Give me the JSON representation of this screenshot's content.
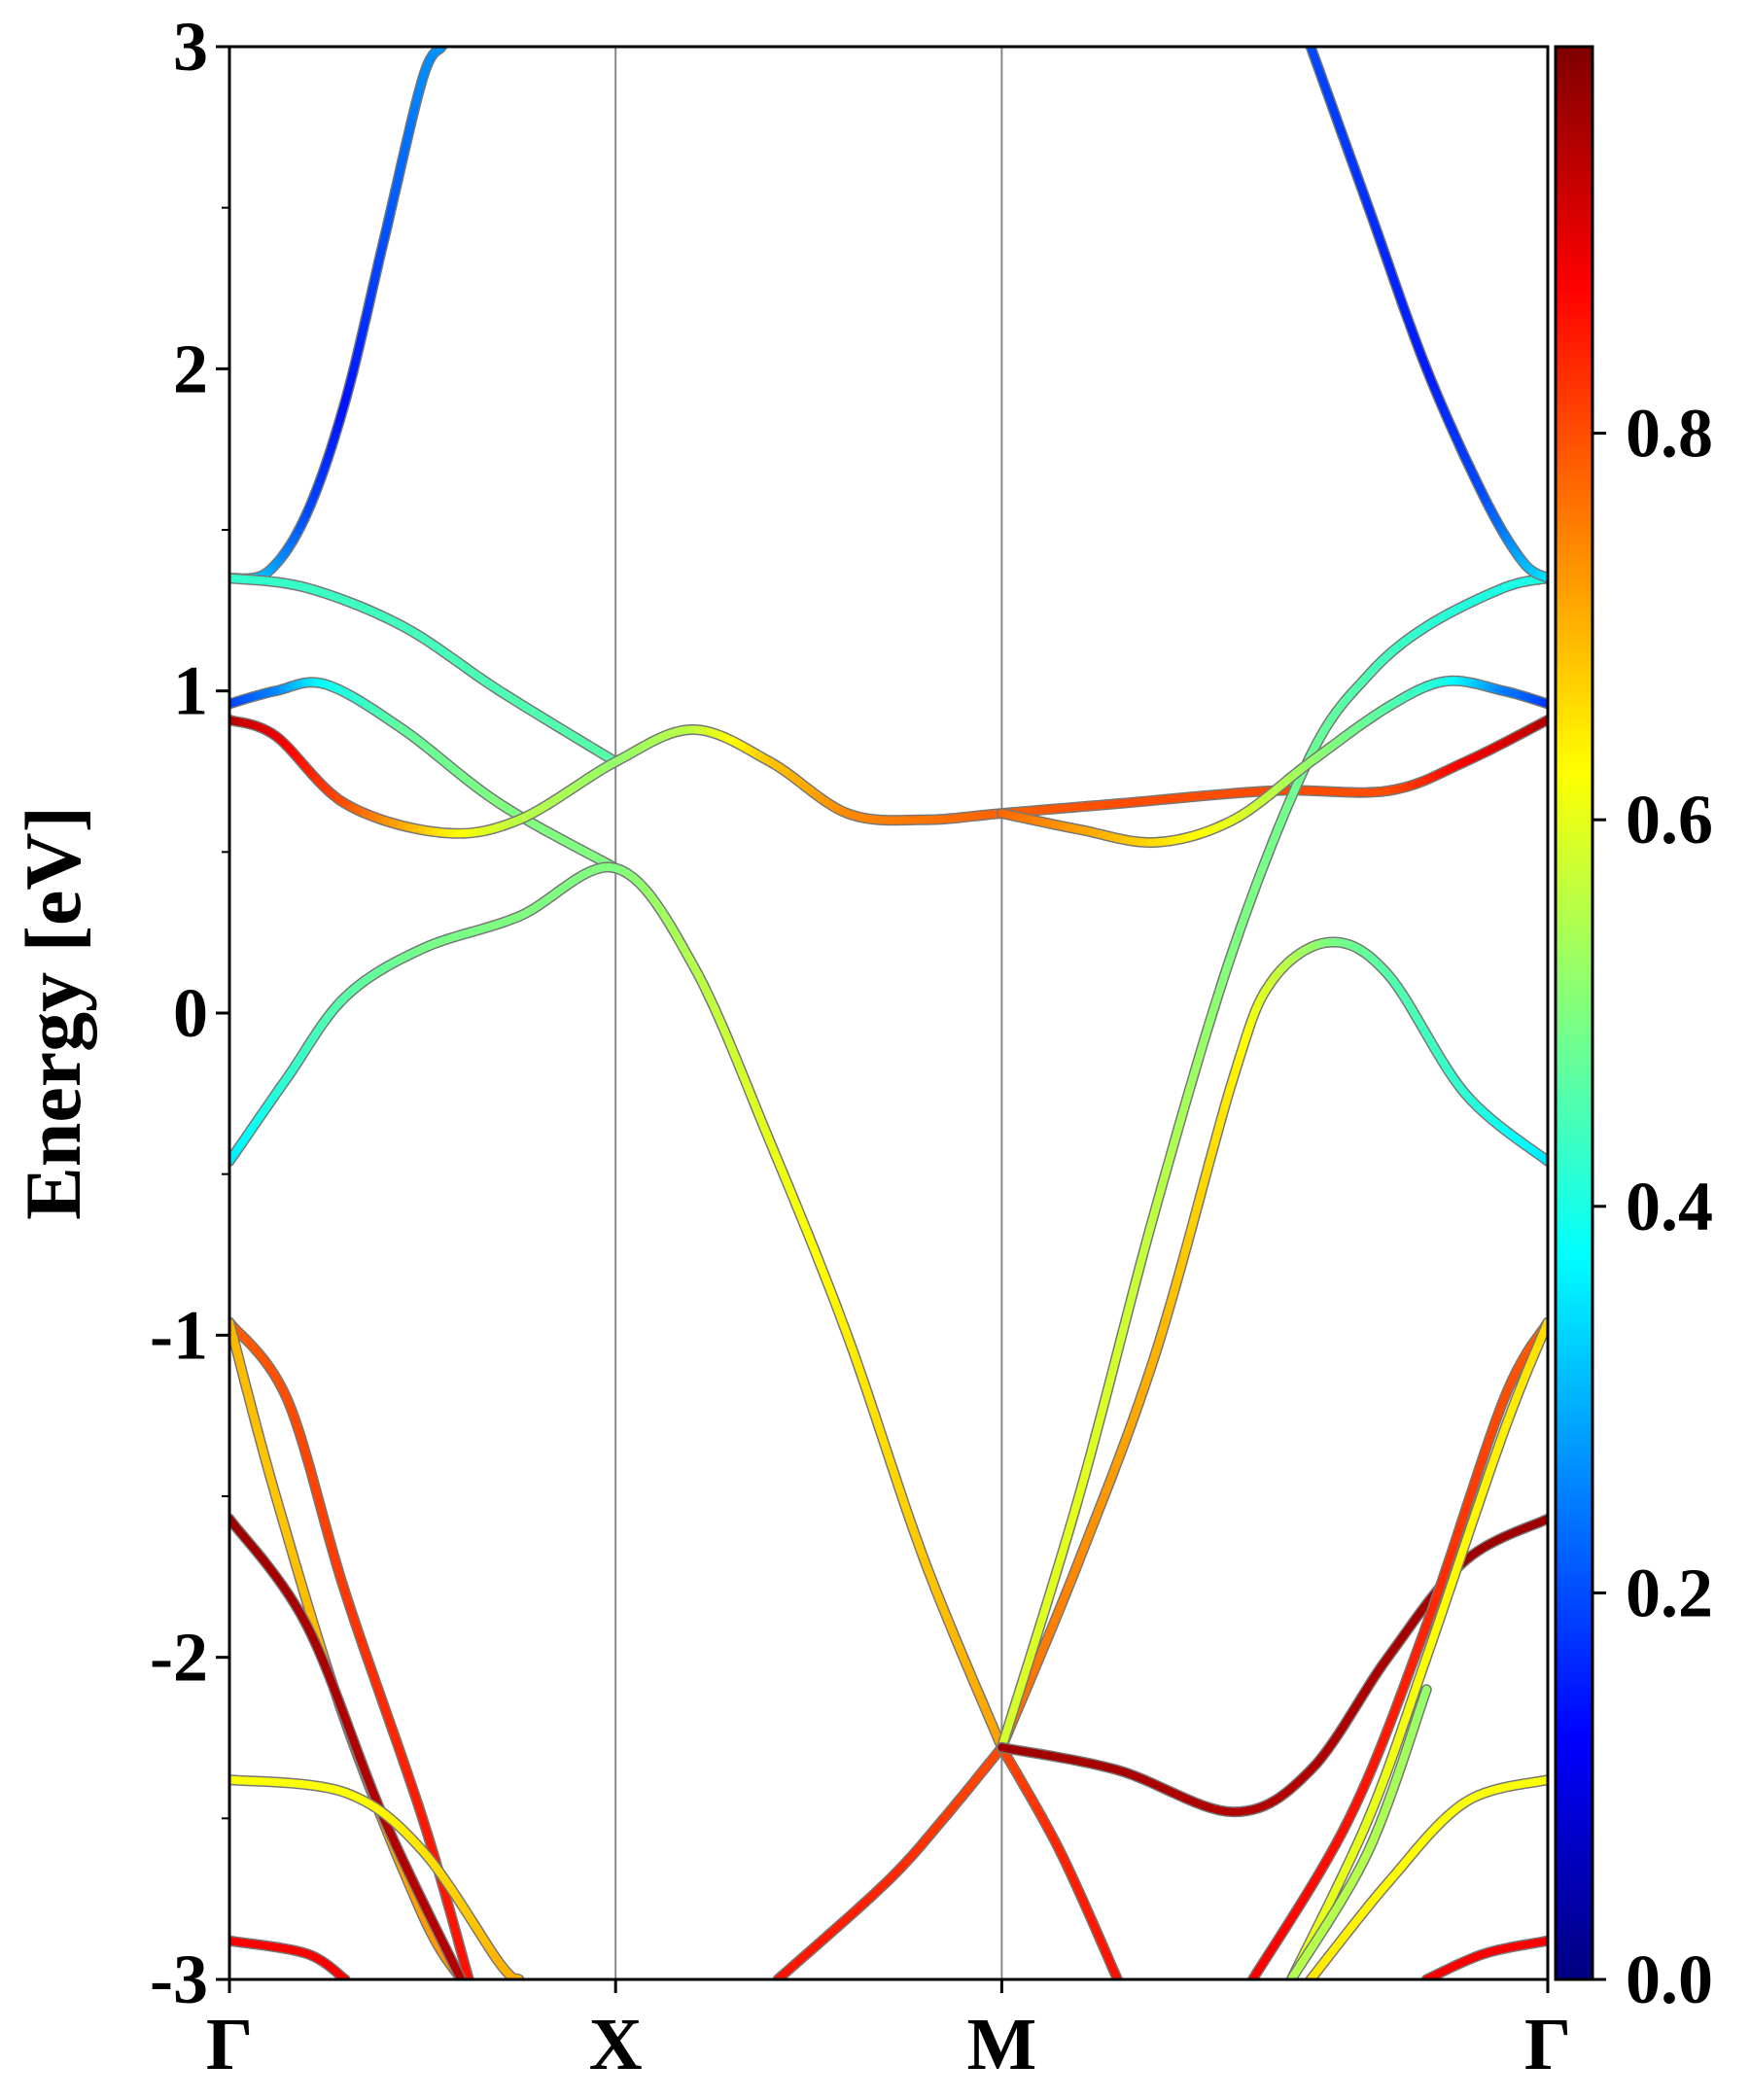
{
  "chart_data": {
    "type": "line",
    "title": "",
    "xlabel": "",
    "ylabel": "Energy [eV]",
    "ylim": [
      -3,
      3
    ],
    "grid": false,
    "x_ticks": [
      {
        "label": "Γ",
        "x": 0
      },
      {
        "label": "X",
        "x": 1
      },
      {
        "label": "M",
        "x": 2
      },
      {
        "label": "Γ",
        "x": 3.414
      }
    ],
    "y_ticks": [
      "3",
      "2",
      "1",
      "0",
      "-1",
      "-2",
      "-3"
    ],
    "colorbar": {
      "colormap": "jet",
      "range": [
        0.0,
        1.0
      ],
      "tick_labels": [
        "0.0",
        "0.2",
        "0.4",
        "0.6",
        "0.8"
      ]
    },
    "series": [
      {
        "points": [
          [
            0,
            1.35,
            0.35
          ],
          [
            0.1,
            1.37,
            0.3
          ],
          [
            0.2,
            1.55,
            0.2
          ],
          [
            0.3,
            1.9,
            0.14
          ],
          [
            0.4,
            2.4,
            0.2
          ],
          [
            0.5,
            2.9,
            0.26
          ],
          [
            0.55,
            3.0,
            0.27
          ]
        ]
      },
      {
        "points": [
          [
            0,
            1.35,
            0.42
          ],
          [
            0.2,
            1.32,
            0.43
          ],
          [
            0.45,
            1.2,
            0.44
          ],
          [
            0.7,
            1.0,
            0.45
          ],
          [
            1.0,
            0.78,
            0.46
          ]
        ]
      },
      {
        "points": [
          [
            0,
            0.96,
            0.18
          ],
          [
            0.12,
            1.0,
            0.25
          ],
          [
            0.25,
            1.02,
            0.38
          ],
          [
            0.45,
            0.88,
            0.47
          ],
          [
            0.7,
            0.65,
            0.5
          ],
          [
            1.0,
            0.45,
            0.5
          ]
        ]
      },
      {
        "points": [
          [
            0,
            0.91,
            0.95
          ],
          [
            0.12,
            0.86,
            0.9
          ],
          [
            0.3,
            0.65,
            0.8
          ],
          [
            0.55,
            0.56,
            0.65
          ],
          [
            0.75,
            0.6,
            0.56
          ],
          [
            1.0,
            0.78,
            0.52
          ],
          [
            1.2,
            0.88,
            0.56
          ],
          [
            1.4,
            0.78,
            0.68
          ],
          [
            1.6,
            0.62,
            0.74
          ],
          [
            1.8,
            0.6,
            0.76
          ],
          [
            2.0,
            0.62,
            0.78
          ],
          [
            2.3,
            0.65,
            0.8
          ],
          [
            2.7,
            0.69,
            0.8
          ],
          [
            3.0,
            0.69,
            0.8
          ],
          [
            3.2,
            0.78,
            0.88
          ],
          [
            3.414,
            0.91,
            0.95
          ]
        ]
      },
      {
        "points": [
          [
            0,
            -0.46,
            0.35
          ],
          [
            0.15,
            -0.2,
            0.42
          ],
          [
            0.3,
            0.05,
            0.46
          ],
          [
            0.5,
            0.2,
            0.49
          ],
          [
            0.75,
            0.3,
            0.5
          ],
          [
            1.0,
            0.45,
            0.5
          ],
          [
            1.2,
            0.15,
            0.55
          ],
          [
            1.4,
            -0.4,
            0.6
          ],
          [
            1.6,
            -1.0,
            0.64
          ],
          [
            1.8,
            -1.7,
            0.68
          ],
          [
            2.0,
            -2.28,
            0.72
          ]
        ]
      },
      {
        "points": [
          [
            2.0,
            -2.28,
            0.78
          ],
          [
            2.2,
            -1.7,
            0.74
          ],
          [
            2.4,
            -1.05,
            0.7
          ],
          [
            2.6,
            -0.2,
            0.64
          ],
          [
            2.7,
            0.1,
            0.58
          ],
          [
            2.85,
            0.22,
            0.5
          ],
          [
            3.0,
            0.12,
            0.46
          ],
          [
            3.2,
            -0.25,
            0.42
          ],
          [
            3.414,
            -0.46,
            0.35
          ]
        ]
      },
      {
        "points": [
          [
            2.0,
            -2.28,
            0.58
          ],
          [
            2.2,
            -1.5,
            0.6
          ],
          [
            2.4,
            -0.6,
            0.56
          ],
          [
            2.6,
            0.2,
            0.5
          ],
          [
            2.8,
            0.8,
            0.48
          ],
          [
            2.95,
            1.05,
            0.45
          ],
          [
            3.1,
            1.2,
            0.42
          ],
          [
            3.3,
            1.32,
            0.4
          ],
          [
            3.414,
            1.35,
            0.4
          ]
        ]
      },
      {
        "points": [
          [
            2.0,
            0.62,
            0.78
          ],
          [
            2.2,
            0.57,
            0.72
          ],
          [
            2.4,
            0.53,
            0.66
          ],
          [
            2.6,
            0.6,
            0.6
          ],
          [
            2.8,
            0.78,
            0.52
          ],
          [
            3.0,
            0.95,
            0.46
          ],
          [
            3.15,
            1.03,
            0.4
          ],
          [
            3.3,
            1.0,
            0.25
          ],
          [
            3.414,
            0.96,
            0.18
          ]
        ]
      },
      {
        "points": [
          [
            2.8,
            3.0,
            0.2
          ],
          [
            2.95,
            2.5,
            0.17
          ],
          [
            3.1,
            2.0,
            0.15
          ],
          [
            3.25,
            1.6,
            0.2
          ],
          [
            3.35,
            1.4,
            0.3
          ],
          [
            3.414,
            1.35,
            0.35
          ]
        ]
      },
      {
        "points": [
          [
            0,
            -0.96,
            0.78
          ],
          [
            0.15,
            -1.2,
            0.8
          ],
          [
            0.3,
            -1.8,
            0.82
          ],
          [
            0.5,
            -2.5,
            0.85
          ],
          [
            0.62,
            -3.0,
            0.86
          ]
        ]
      },
      {
        "points": [
          [
            0,
            -0.96,
            0.7
          ],
          [
            0.12,
            -1.5,
            0.68
          ],
          [
            0.3,
            -2.2,
            0.7
          ],
          [
            0.5,
            -2.8,
            0.72
          ],
          [
            0.6,
            -3.0,
            0.74
          ]
        ]
      },
      {
        "points": [
          [
            0,
            -1.57,
            0.97
          ],
          [
            0.2,
            -1.9,
            0.96
          ],
          [
            0.4,
            -2.5,
            0.95
          ],
          [
            0.6,
            -3.0,
            0.95
          ]
        ]
      },
      {
        "points": [
          [
            0,
            -2.38,
            0.62
          ],
          [
            0.3,
            -2.42,
            0.62
          ],
          [
            0.5,
            -2.6,
            0.65
          ],
          [
            0.7,
            -2.95,
            0.7
          ],
          [
            0.75,
            -3.0,
            0.7
          ]
        ]
      },
      {
        "points": [
          [
            0,
            -2.88,
            0.88
          ],
          [
            0.2,
            -2.92,
            0.88
          ],
          [
            0.3,
            -3.0,
            0.88
          ]
        ]
      },
      {
        "points": [
          [
            1.42,
            -3.0,
            0.86
          ],
          [
            1.7,
            -2.7,
            0.84
          ],
          [
            1.85,
            -2.5,
            0.82
          ],
          [
            2.0,
            -2.28,
            0.8
          ]
        ]
      },
      {
        "points": [
          [
            2.0,
            -2.28,
            0.8
          ],
          [
            2.15,
            -2.6,
            0.84
          ],
          [
            2.3,
            -3.0,
            0.86
          ]
        ]
      },
      {
        "points": [
          [
            2.0,
            -2.28,
            0.97
          ],
          [
            2.3,
            -2.35,
            0.96
          ],
          [
            2.6,
            -2.48,
            0.95
          ],
          [
            2.8,
            -2.35,
            0.95
          ],
          [
            3.0,
            -2.0,
            0.96
          ],
          [
            3.2,
            -1.7,
            0.97
          ],
          [
            3.414,
            -1.57,
            0.97
          ]
        ]
      },
      {
        "points": [
          [
            2.65,
            -3.0,
            0.88
          ],
          [
            2.9,
            -2.5,
            0.86
          ],
          [
            3.1,
            -1.9,
            0.84
          ],
          [
            3.3,
            -1.2,
            0.8
          ],
          [
            3.414,
            -0.96,
            0.78
          ]
        ]
      },
      {
        "points": [
          [
            2.75,
            -3.0,
            0.6
          ],
          [
            2.95,
            -2.5,
            0.6
          ],
          [
            3.1,
            -2.0,
            0.62
          ],
          [
            3.3,
            -1.3,
            0.64
          ],
          [
            3.414,
            -0.96,
            0.66
          ]
        ]
      },
      {
        "points": [
          [
            2.75,
            -3.0,
            0.55
          ],
          [
            2.95,
            -2.6,
            0.55
          ],
          [
            3.1,
            -2.1,
            0.52
          ]
        ]
      },
      {
        "points": [
          [
            2.8,
            -3.0,
            0.65
          ],
          [
            3.0,
            -2.7,
            0.63
          ],
          [
            3.2,
            -2.45,
            0.62
          ],
          [
            3.414,
            -2.38,
            0.62
          ]
        ]
      },
      {
        "points": [
          [
            3.1,
            -3.0,
            0.88
          ],
          [
            3.25,
            -2.92,
            0.88
          ],
          [
            3.414,
            -2.88,
            0.88
          ]
        ]
      }
    ]
  }
}
